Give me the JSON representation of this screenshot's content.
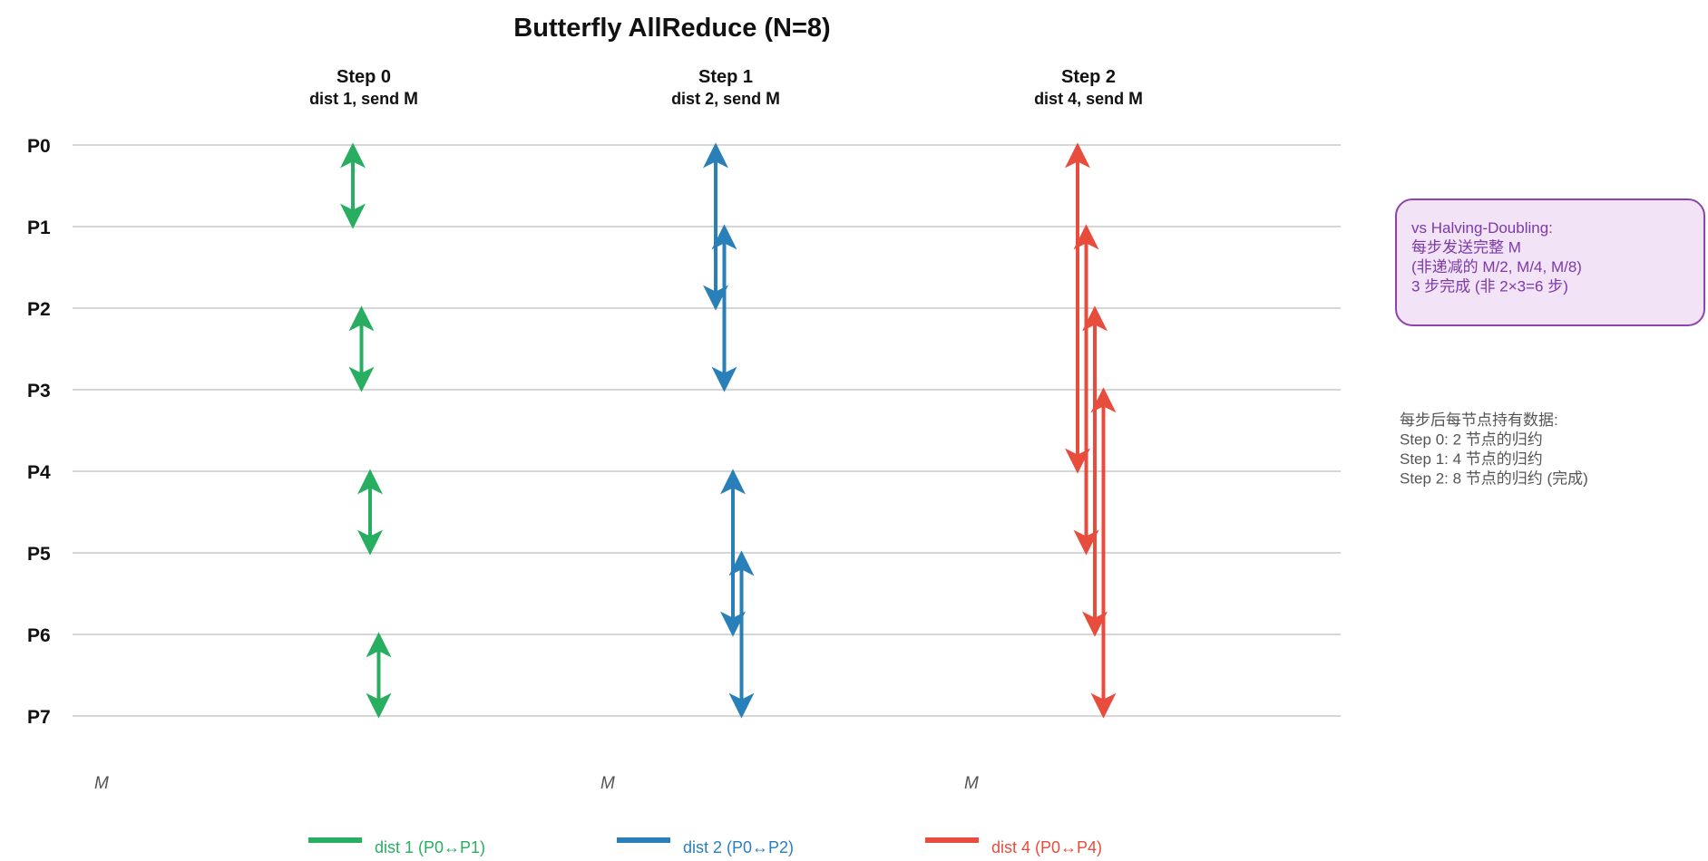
{
  "title": "Butterfly AllReduce (N=8)",
  "processes": [
    "P0",
    "P1",
    "P2",
    "P3",
    "P4",
    "P5",
    "P6",
    "P7"
  ],
  "steps": [
    {
      "title": "Step 0",
      "subtitle_prefix": "dist 1, send ",
      "subtitle_bold": "M",
      "distance": 1,
      "color": "#27ae60",
      "m_label": "M"
    },
    {
      "title": "Step 1",
      "subtitle_prefix": "dist 2, send ",
      "subtitle_bold": "M",
      "distance": 2,
      "color": "#2980b9",
      "m_label": "M"
    },
    {
      "title": "Step 2",
      "subtitle_prefix": "dist 4, send ",
      "subtitle_bold": "M",
      "distance": 4,
      "color": "#e74c3c",
      "m_label": "M"
    }
  ],
  "exchanges": [
    {
      "step": 0,
      "pairs": [
        [
          0,
          1
        ],
        [
          2,
          3
        ],
        [
          4,
          5
        ],
        [
          6,
          7
        ]
      ]
    },
    {
      "step": 1,
      "pairs": [
        [
          0,
          2
        ],
        [
          1,
          3
        ],
        [
          4,
          6
        ],
        [
          5,
          7
        ]
      ]
    },
    {
      "step": 2,
      "pairs": [
        [
          0,
          4
        ],
        [
          1,
          5
        ],
        [
          2,
          6
        ],
        [
          3,
          7
        ]
      ]
    }
  ],
  "note_box": {
    "lines": [
      "vs Halving-Doubling:",
      "每步发送完整 M",
      "(非递减的 M/2, M/4, M/8)",
      "3 步完成 (非 2×3=6 步)"
    ],
    "border_color": "#8e44ad",
    "fill_color": "#f3e3f7"
  },
  "info": {
    "lines": [
      "每步后每节点持有数据:",
      "Step 0: 2 节点的归约",
      "Step 1: 4 节点的归约",
      "Step 2: 8 节点的归约 (完成)"
    ]
  },
  "legend": [
    {
      "label": "dist 1 (P0↔P1)",
      "color": "#27ae60"
    },
    {
      "label": "dist 2 (P0↔P2)",
      "color": "#2980b9"
    },
    {
      "label": "dist 4 (P0↔P4)",
      "color": "#e74c3c"
    }
  ]
}
